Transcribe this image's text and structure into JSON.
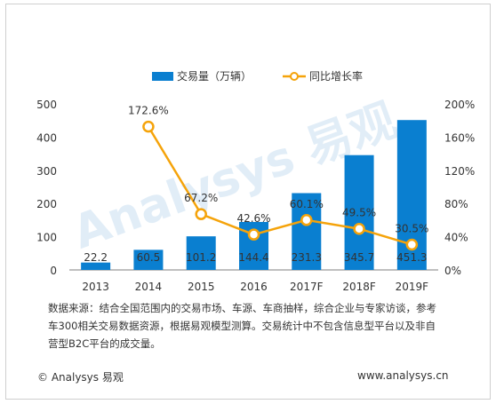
{
  "chart_data": {
    "type": "bar",
    "categories": [
      "2013",
      "2014",
      "2015",
      "2016",
      "2017F",
      "2018F",
      "2019F"
    ],
    "series": [
      {
        "name": "交易量（万辆）",
        "type": "bar",
        "axis": "left",
        "color": "#0a7fd0",
        "values": [
          22.2,
          60.5,
          101.2,
          144.4,
          231.3,
          345.7,
          451.3
        ],
        "labels": [
          "22.2",
          "60.5",
          "101.2",
          "144.4",
          "231.3",
          "345.7",
          "451.3"
        ]
      },
      {
        "name": "同比增长率",
        "type": "line",
        "axis": "right",
        "color": "#f5a30a",
        "values": [
          null,
          172.6,
          67.2,
          42.6,
          60.1,
          49.5,
          30.5
        ],
        "labels": [
          "",
          "172.6%",
          "67.2%",
          "42.6%",
          "60.1%",
          "49.5%",
          "30.5%"
        ]
      }
    ],
    "y_left": {
      "min": 0,
      "max": 500,
      "ticks": [
        "0",
        "100",
        "200",
        "300",
        "400",
        "500"
      ]
    },
    "y_right": {
      "min": 0,
      "max": 200,
      "ticks": [
        "0%",
        "40%",
        "80%",
        "120%",
        "160%",
        "200%"
      ]
    },
    "legend_position": "top-center",
    "grid": false
  },
  "watermark_text": "Analysys 易观",
  "note": "数据来源：结合全国范围内的交易市场、车源、车商抽样，综合企业与专家访谈，参考车300相关交易数据资源，根据易观模型测算。交易统计中不包含信息型平台以及非自营型B2C平台的成交量。",
  "footer": {
    "brand": "© Analysys 易观",
    "url": "www.analysys.cn"
  }
}
